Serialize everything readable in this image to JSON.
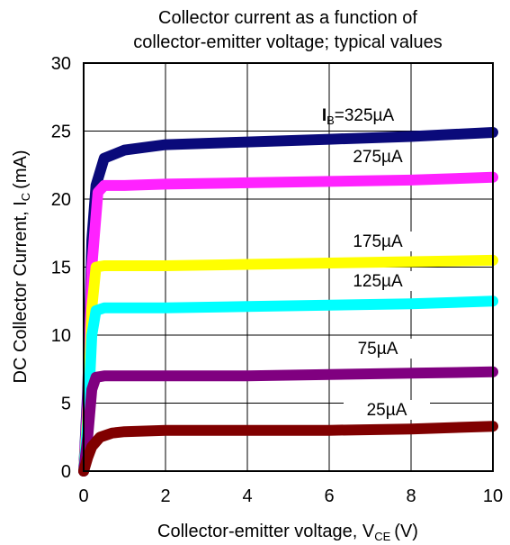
{
  "chart_data": {
    "type": "line",
    "title_line1": "Collector current as a function of",
    "title_line2": "collector-emitter voltage; typical values",
    "xlabel_main": "Collector-emitter voltage, V",
    "xlabel_sub": "CE",
    "xlabel_unit": "(V)",
    "ylabel_main": "DC Collector Current, I",
    "ylabel_sub": "C",
    "ylabel_unit": "(mA)",
    "xlim": [
      0,
      10
    ],
    "ylim": [
      0,
      30
    ],
    "x_ticks": [
      0,
      2,
      4,
      6,
      8,
      10
    ],
    "y_ticks": [
      0,
      5,
      10,
      15,
      20,
      25,
      30
    ],
    "grid": true,
    "series": [
      {
        "name": "325µA",
        "label_prefix": "I",
        "label_sub": "B",
        "label_main": "=325µA",
        "color": "#0a0a7a",
        "points": [
          [
            0,
            0
          ],
          [
            0.1,
            6
          ],
          [
            0.2,
            17
          ],
          [
            0.3,
            21
          ],
          [
            0.5,
            23
          ],
          [
            1,
            23.6
          ],
          [
            2,
            24.0
          ],
          [
            4,
            24.2
          ],
          [
            6,
            24.4
          ],
          [
            8,
            24.6
          ],
          [
            10,
            24.9
          ]
        ]
      },
      {
        "name": "275µA",
        "label_main": "275µA",
        "color": "#ff22ff",
        "points": [
          [
            0,
            0
          ],
          [
            0.1,
            5
          ],
          [
            0.2,
            15
          ],
          [
            0.35,
            20.5
          ],
          [
            0.5,
            21.0
          ],
          [
            1,
            21.0
          ],
          [
            2,
            21.1
          ],
          [
            4,
            21.2
          ],
          [
            6,
            21.3
          ],
          [
            8,
            21.4
          ],
          [
            10,
            21.6
          ]
        ]
      },
      {
        "name": "175µA",
        "label_main": "175µA",
        "color": "#ffff00",
        "points": [
          [
            0,
            0
          ],
          [
            0.1,
            4
          ],
          [
            0.2,
            12
          ],
          [
            0.3,
            15
          ],
          [
            0.5,
            15.1
          ],
          [
            1,
            15.1
          ],
          [
            2,
            15.1
          ],
          [
            4,
            15.2
          ],
          [
            6,
            15.3
          ],
          [
            8,
            15.4
          ],
          [
            10,
            15.5
          ]
        ]
      },
      {
        "name": "125µA",
        "label_main": "125µA",
        "color": "#00ffff",
        "points": [
          [
            0,
            0
          ],
          [
            0.1,
            3.5
          ],
          [
            0.2,
            10
          ],
          [
            0.3,
            11.8
          ],
          [
            0.5,
            12.0
          ],
          [
            1,
            12.0
          ],
          [
            2,
            12.0
          ],
          [
            4,
            12.1
          ],
          [
            6,
            12.2
          ],
          [
            8,
            12.3
          ],
          [
            10,
            12.5
          ]
        ]
      },
      {
        "name": "75µA",
        "label_main": "75µA",
        "color": "#800080",
        "points": [
          [
            0,
            0
          ],
          [
            0.1,
            2.5
          ],
          [
            0.2,
            6
          ],
          [
            0.3,
            6.9
          ],
          [
            0.5,
            7.0
          ],
          [
            1,
            7.0
          ],
          [
            2,
            7.0
          ],
          [
            4,
            7.0
          ],
          [
            6,
            7.1
          ],
          [
            8,
            7.2
          ],
          [
            10,
            7.3
          ]
        ]
      },
      {
        "name": "25µA",
        "label_main": "25µA",
        "color": "#800000",
        "points": [
          [
            0,
            0
          ],
          [
            0.1,
            1.0
          ],
          [
            0.2,
            1.8
          ],
          [
            0.4,
            2.5
          ],
          [
            0.7,
            2.8
          ],
          [
            1,
            2.9
          ],
          [
            2,
            3.0
          ],
          [
            4,
            3.0
          ],
          [
            6,
            3.0
          ],
          [
            8,
            3.1
          ],
          [
            10,
            3.3
          ]
        ]
      }
    ]
  }
}
